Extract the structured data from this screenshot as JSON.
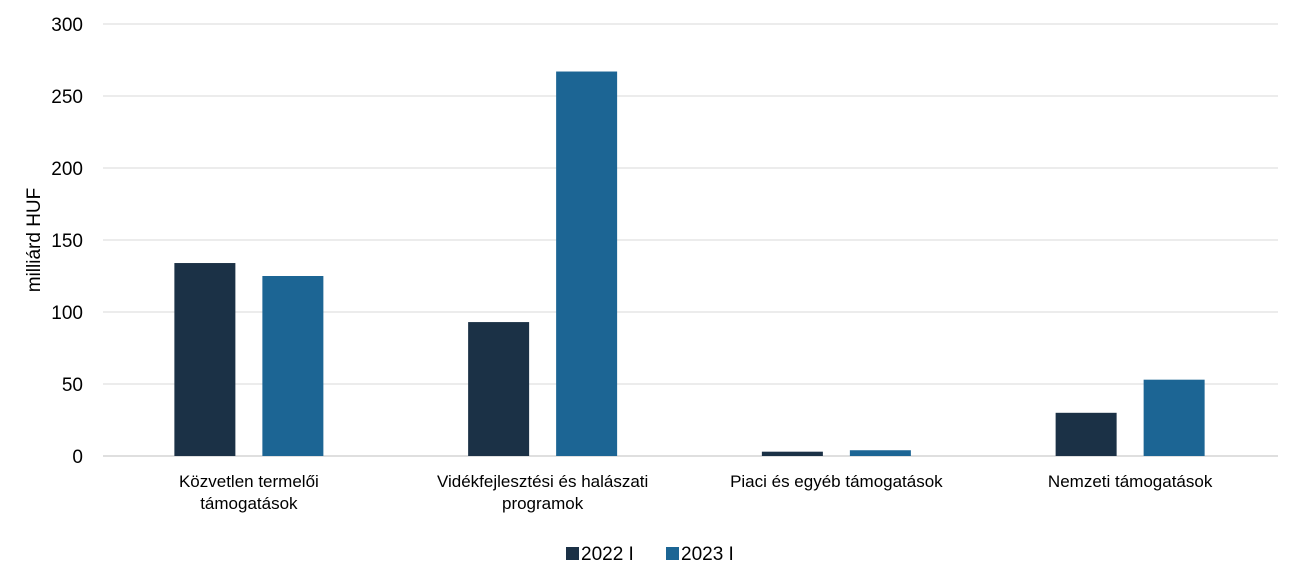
{
  "chart_data": {
    "type": "bar",
    "title": "",
    "xlabel": "",
    "ylabel": "milliárd HUF",
    "ylim": [
      0,
      300
    ],
    "yticks": [
      0,
      50,
      100,
      150,
      200,
      250,
      300
    ],
    "grid": true,
    "legend_position": "bottom",
    "categories": [
      [
        "Közvetlen termelői",
        "támogatások"
      ],
      [
        "Vidékfejlesztési és halászati",
        "programok"
      ],
      [
        "Piaci és egyéb támogatások"
      ],
      [
        "Nemzeti támogatások"
      ]
    ],
    "series": [
      {
        "name": "2022 I",
        "color": "#1b3146",
        "values": [
          134,
          93,
          3,
          30
        ]
      },
      {
        "name": "2023 I",
        "color": "#1c6594",
        "values": [
          125,
          267,
          4,
          53
        ]
      }
    ]
  }
}
